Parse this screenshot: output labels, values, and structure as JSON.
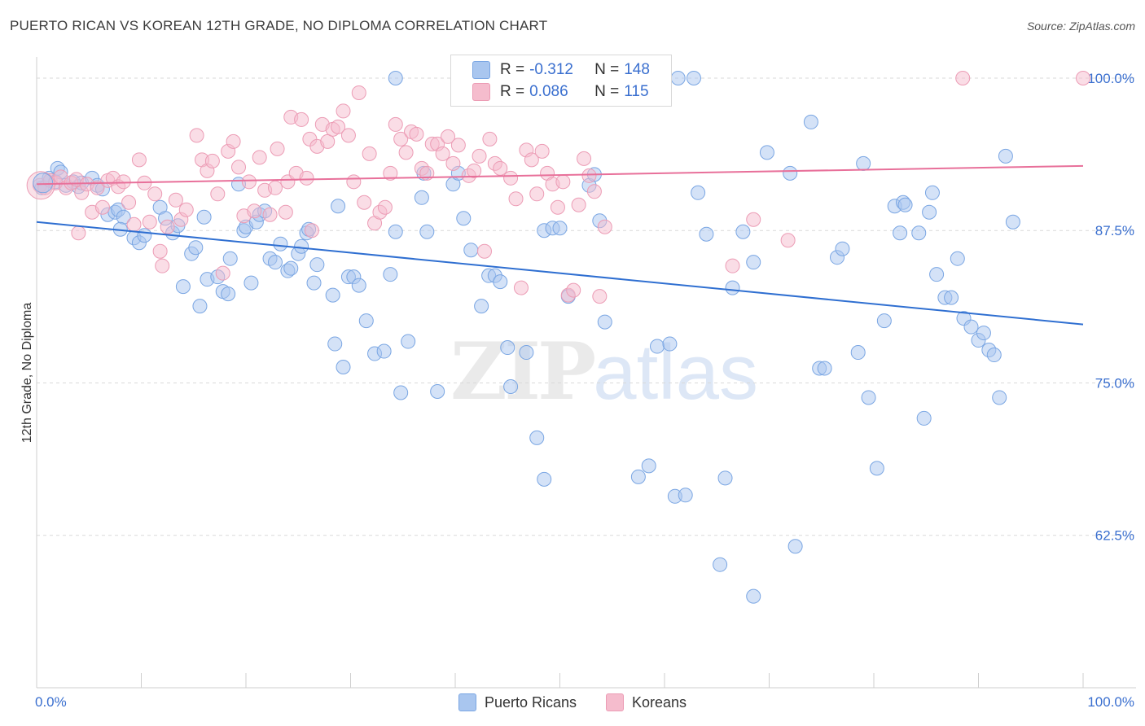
{
  "title": "PUERTO RICAN VS KOREAN 12TH GRADE, NO DIPLOMA CORRELATION CHART",
  "source": "Source: ZipAtlas.com",
  "watermark": {
    "zip": "ZIP",
    "atlas": "atlas"
  },
  "legend": {
    "series1": {
      "r_label": "R = ",
      "r_value": "-0.312",
      "n_label": "N = ",
      "n_value": "148"
    },
    "series2": {
      "r_label": "R = ",
      "r_value": "0.086",
      "n_label": "N = ",
      "n_value": "115"
    }
  },
  "bottom_legend": {
    "series1": "Puerto Ricans",
    "series2": "Koreans"
  },
  "colors": {
    "blue_fill": "#a9c6ef",
    "blue_stroke": "#7aa6e3",
    "blue_line": "#2f6fd1",
    "pink_fill": "#f5bccd",
    "pink_stroke": "#ec9cb5",
    "pink_line": "#e8709a",
    "tick_label": "#3a6fcf",
    "grid": "#d9d9d9"
  },
  "chart_data": {
    "type": "scatter",
    "title": "PUERTO RICAN VS KOREAN 12TH GRADE, NO DIPLOMA CORRELATION CHART",
    "xlabel": "",
    "ylabel": "12th Grade, No Diploma",
    "xlim": [
      0,
      100
    ],
    "ylim": [
      50,
      101
    ],
    "x_tick_labels": [
      "0.0%",
      "100.0%"
    ],
    "y_ticks": [
      62.5,
      75.0,
      87.5,
      100.0
    ],
    "y_tick_labels": [
      "62.5%",
      "75.0%",
      "87.5%",
      "100.0%"
    ],
    "grid": "horizontal dashed",
    "legend_position": "top-center",
    "series": [
      {
        "name": "Puerto Ricans",
        "r": -0.312,
        "n": 148,
        "trend": {
          "x": [
            0,
            100
          ],
          "y": [
            88.2,
            79.8
          ]
        },
        "points": [
          [
            0.5,
            91
          ],
          [
            1.2,
            91.8
          ],
          [
            1.8,
            91.5
          ],
          [
            2,
            92.6
          ],
          [
            2.3,
            92.3
          ],
          [
            2.8,
            91.2
          ],
          [
            3.5,
            91.5
          ],
          [
            4,
            91.1
          ],
          [
            4.3,
            91.4
          ],
          [
            5.3,
            91.8
          ],
          [
            5.8,
            91.2
          ],
          [
            6.3,
            90.9
          ],
          [
            6.8,
            88.8
          ],
          [
            7.5,
            89.0
          ],
          [
            7.8,
            89.2
          ],
          [
            8.3,
            88.6
          ],
          [
            8,
            87.6
          ],
          [
            9.3,
            86.9
          ],
          [
            9.8,
            86.5
          ],
          [
            10.3,
            87.1
          ],
          [
            11.8,
            89.4
          ],
          [
            12.3,
            88.5
          ],
          [
            13,
            87.3
          ],
          [
            13.5,
            87.9
          ],
          [
            14,
            82.9
          ],
          [
            14.8,
            85.6
          ],
          [
            15.2,
            86.1
          ],
          [
            15.6,
            81.3
          ],
          [
            16,
            88.6
          ],
          [
            16.3,
            83.5
          ],
          [
            17.3,
            83.7
          ],
          [
            17.8,
            82.5
          ],
          [
            18.3,
            82.3
          ],
          [
            18.5,
            85.2
          ],
          [
            19.3,
            91.3
          ],
          [
            19.8,
            87.5
          ],
          [
            20,
            87.8
          ],
          [
            20.5,
            83.2
          ],
          [
            21,
            88.2
          ],
          [
            21.3,
            88.8
          ],
          [
            21.8,
            89.1
          ],
          [
            22.3,
            85.2
          ],
          [
            22.8,
            84.9
          ],
          [
            23.3,
            86.4
          ],
          [
            24,
            84.2
          ],
          [
            24.3,
            84.4
          ],
          [
            25,
            85.6
          ],
          [
            25.3,
            86.2
          ],
          [
            25.8,
            87.3
          ],
          [
            26,
            87.6
          ],
          [
            26.5,
            83.2
          ],
          [
            26.8,
            84.7
          ],
          [
            28.5,
            78.2
          ],
          [
            28.3,
            82.2
          ],
          [
            28.8,
            89.5
          ],
          [
            29.3,
            76.3
          ],
          [
            29.8,
            83.7
          ],
          [
            30.3,
            83.7
          ],
          [
            30.8,
            83.0
          ],
          [
            31.5,
            80.1
          ],
          [
            32.3,
            77.4
          ],
          [
            33.2,
            77.6
          ],
          [
            33.8,
            83.9
          ],
          [
            34.3,
            87.4
          ],
          [
            34.8,
            74.2
          ],
          [
            35.5,
            78.4
          ],
          [
            36.8,
            90.2
          ],
          [
            37,
            92.2
          ],
          [
            37.3,
            87.4
          ],
          [
            38.3,
            74.3
          ],
          [
            39.8,
            91.3
          ],
          [
            40.3,
            92.2
          ],
          [
            40.8,
            88.5
          ],
          [
            41.5,
            85.9
          ],
          [
            42.5,
            81.3
          ],
          [
            43.2,
            83.8
          ],
          [
            43.8,
            83.8
          ],
          [
            44.3,
            83.3
          ],
          [
            45.0,
            77.9
          ],
          [
            45.3,
            74.7
          ],
          [
            46.8,
            77.5
          ],
          [
            47.8,
            70.5
          ],
          [
            48.5,
            67.1
          ],
          [
            48.5,
            87.5
          ],
          [
            49.3,
            87.7
          ],
          [
            50.0,
            87.7
          ],
          [
            50.8,
            82.1
          ],
          [
            52.8,
            91.2
          ],
          [
            53.3,
            92.1
          ],
          [
            53.8,
            88.3
          ],
          [
            54.3,
            80.0
          ],
          [
            57.5,
            67.3
          ],
          [
            58.5,
            68.2
          ],
          [
            59.3,
            78.0
          ],
          [
            60.5,
            78.2
          ],
          [
            61.0,
            65.7
          ],
          [
            62,
            65.8
          ],
          [
            63.2,
            90.6
          ],
          [
            64.0,
            87.2
          ],
          [
            65.3,
            60.1
          ],
          [
            65.8,
            67.2
          ],
          [
            66.5,
            82.8
          ],
          [
            67.5,
            87.4
          ],
          [
            68.5,
            84.9
          ],
          [
            69.8,
            93.9
          ],
          [
            72,
            92.2
          ],
          [
            72.5,
            61.6
          ],
          [
            74,
            96.4
          ],
          [
            74.8,
            76.2
          ],
          [
            75.3,
            76.2
          ],
          [
            76.5,
            85.3
          ],
          [
            77.0,
            86.0
          ],
          [
            78.5,
            77.5
          ],
          [
            79,
            93.0
          ],
          [
            79.5,
            73.8
          ],
          [
            80.3,
            68.0
          ],
          [
            81.0,
            80.1
          ],
          [
            82,
            89.5
          ],
          [
            82.5,
            87.3
          ],
          [
            82.8,
            89.8
          ],
          [
            83.0,
            89.6
          ],
          [
            84.3,
            87.3
          ],
          [
            84.8,
            72.1
          ],
          [
            85.3,
            89.0
          ],
          [
            85.6,
            90.6
          ],
          [
            86.0,
            83.9
          ],
          [
            86.8,
            82.0
          ],
          [
            87.4,
            82.0
          ],
          [
            88.0,
            85.2
          ],
          [
            88.6,
            80.3
          ],
          [
            89.3,
            79.6
          ],
          [
            90.0,
            78.5
          ],
          [
            90.5,
            79.1
          ],
          [
            91.0,
            77.7
          ],
          [
            91.5,
            77.3
          ],
          [
            92.0,
            73.8
          ],
          [
            92.6,
            93.6
          ],
          [
            93.3,
            88.2
          ],
          [
            34.3,
            100
          ],
          [
            46.0,
            100
          ],
          [
            48.2,
            100
          ],
          [
            52.3,
            100
          ],
          [
            56.8,
            100
          ],
          [
            57.5,
            100
          ],
          [
            59.0,
            100
          ],
          [
            61.3,
            100
          ],
          [
            62.8,
            100
          ],
          [
            68.5,
            57.5
          ]
        ]
      },
      {
        "name": "Koreans",
        "r": 0.086,
        "n": 115,
        "trend": {
          "x": [
            0,
            100
          ],
          "y": [
            91.3,
            92.8
          ]
        },
        "points": [
          [
            0.3,
            91.2
          ],
          [
            0.8,
            91.0
          ],
          [
            1.3,
            91.6
          ],
          [
            1.8,
            91.4
          ],
          [
            2.3,
            91.9
          ],
          [
            2.8,
            91.0
          ],
          [
            3.3,
            91.4
          ],
          [
            3.8,
            91.7
          ],
          [
            4.0,
            87.3
          ],
          [
            4.3,
            90.6
          ],
          [
            4.8,
            91.3
          ],
          [
            5.3,
            89.0
          ],
          [
            5.8,
            91.0
          ],
          [
            6.3,
            89.4
          ],
          [
            6.8,
            91.6
          ],
          [
            7.3,
            91.8
          ],
          [
            7.8,
            91.1
          ],
          [
            8.3,
            91.5
          ],
          [
            8.8,
            89.8
          ],
          [
            9.3,
            88.0
          ],
          [
            9.8,
            93.3
          ],
          [
            10.3,
            91.4
          ],
          [
            10.8,
            88.2
          ],
          [
            11.3,
            90.5
          ],
          [
            11.8,
            85.8
          ],
          [
            12.0,
            84.6
          ],
          [
            12.5,
            87.8
          ],
          [
            13.3,
            90.0
          ],
          [
            13.8,
            88.4
          ],
          [
            14.3,
            89.2
          ],
          [
            15.3,
            95.3
          ],
          [
            15.8,
            93.3
          ],
          [
            16.3,
            92.4
          ],
          [
            16.8,
            93.2
          ],
          [
            17.3,
            90.5
          ],
          [
            17.8,
            84.0
          ],
          [
            18.3,
            94.0
          ],
          [
            18.8,
            94.8
          ],
          [
            19.3,
            92.7
          ],
          [
            19.8,
            88.7
          ],
          [
            20.3,
            91.5
          ],
          [
            20.8,
            89.1
          ],
          [
            21.3,
            93.5
          ],
          [
            21.8,
            90.8
          ],
          [
            22.3,
            88.8
          ],
          [
            22.8,
            91.0
          ],
          [
            23.0,
            94.2
          ],
          [
            23.8,
            89.0
          ],
          [
            24.0,
            91.5
          ],
          [
            24.3,
            96.8
          ],
          [
            24.8,
            92.2
          ],
          [
            25.3,
            96.6
          ],
          [
            25.8,
            91.8
          ],
          [
            26.1,
            95.0
          ],
          [
            26.3,
            87.5
          ],
          [
            26.8,
            94.4
          ],
          [
            27.3,
            96.2
          ],
          [
            27.8,
            94.8
          ],
          [
            28.3,
            95.8
          ],
          [
            28.8,
            96.0
          ],
          [
            29.3,
            97.3
          ],
          [
            29.8,
            95.3
          ],
          [
            30.3,
            91.5
          ],
          [
            30.8,
            98.8
          ],
          [
            31.3,
            89.8
          ],
          [
            31.8,
            93.8
          ],
          [
            32.3,
            88.1
          ],
          [
            32.8,
            89.0
          ],
          [
            33.3,
            89.4
          ],
          [
            33.8,
            92.2
          ],
          [
            34.3,
            96.2
          ],
          [
            34.8,
            95.0
          ],
          [
            35.3,
            93.9
          ],
          [
            35.8,
            95.6
          ],
          [
            36.3,
            95.4
          ],
          [
            36.8,
            92.6
          ],
          [
            37.3,
            92.2
          ],
          [
            37.8,
            94.6
          ],
          [
            38.3,
            94.6
          ],
          [
            38.8,
            93.8
          ],
          [
            39.3,
            95.2
          ],
          [
            39.8,
            93.0
          ],
          [
            40.3,
            94.5
          ],
          [
            41.3,
            92.0
          ],
          [
            41.8,
            92.4
          ],
          [
            42.3,
            93.6
          ],
          [
            42.8,
            85.8
          ],
          [
            43.3,
            95.0
          ],
          [
            43.8,
            93.0
          ],
          [
            44.3,
            92.6
          ],
          [
            45.3,
            91.8
          ],
          [
            45.8,
            90.1
          ],
          [
            46.3,
            82.8
          ],
          [
            46.8,
            94.1
          ],
          [
            47.3,
            93.3
          ],
          [
            47.8,
            90.5
          ],
          [
            48.3,
            94.0
          ],
          [
            48.8,
            92.2
          ],
          [
            49.3,
            91.3
          ],
          [
            49.8,
            89.4
          ],
          [
            50.3,
            91.5
          ],
          [
            50.8,
            82.2
          ],
          [
            51.3,
            82.6
          ],
          [
            51.8,
            89.6
          ],
          [
            52.3,
            93.4
          ],
          [
            52.8,
            92.0
          ],
          [
            53.3,
            90.7
          ],
          [
            53.8,
            82.1
          ],
          [
            54.3,
            87.8
          ],
          [
            56.0,
            100
          ],
          [
            66.5,
            84.6
          ],
          [
            68.5,
            88.4
          ],
          [
            71.8,
            86.7
          ],
          [
            88.5,
            100
          ],
          [
            100,
            100
          ]
        ]
      }
    ]
  }
}
